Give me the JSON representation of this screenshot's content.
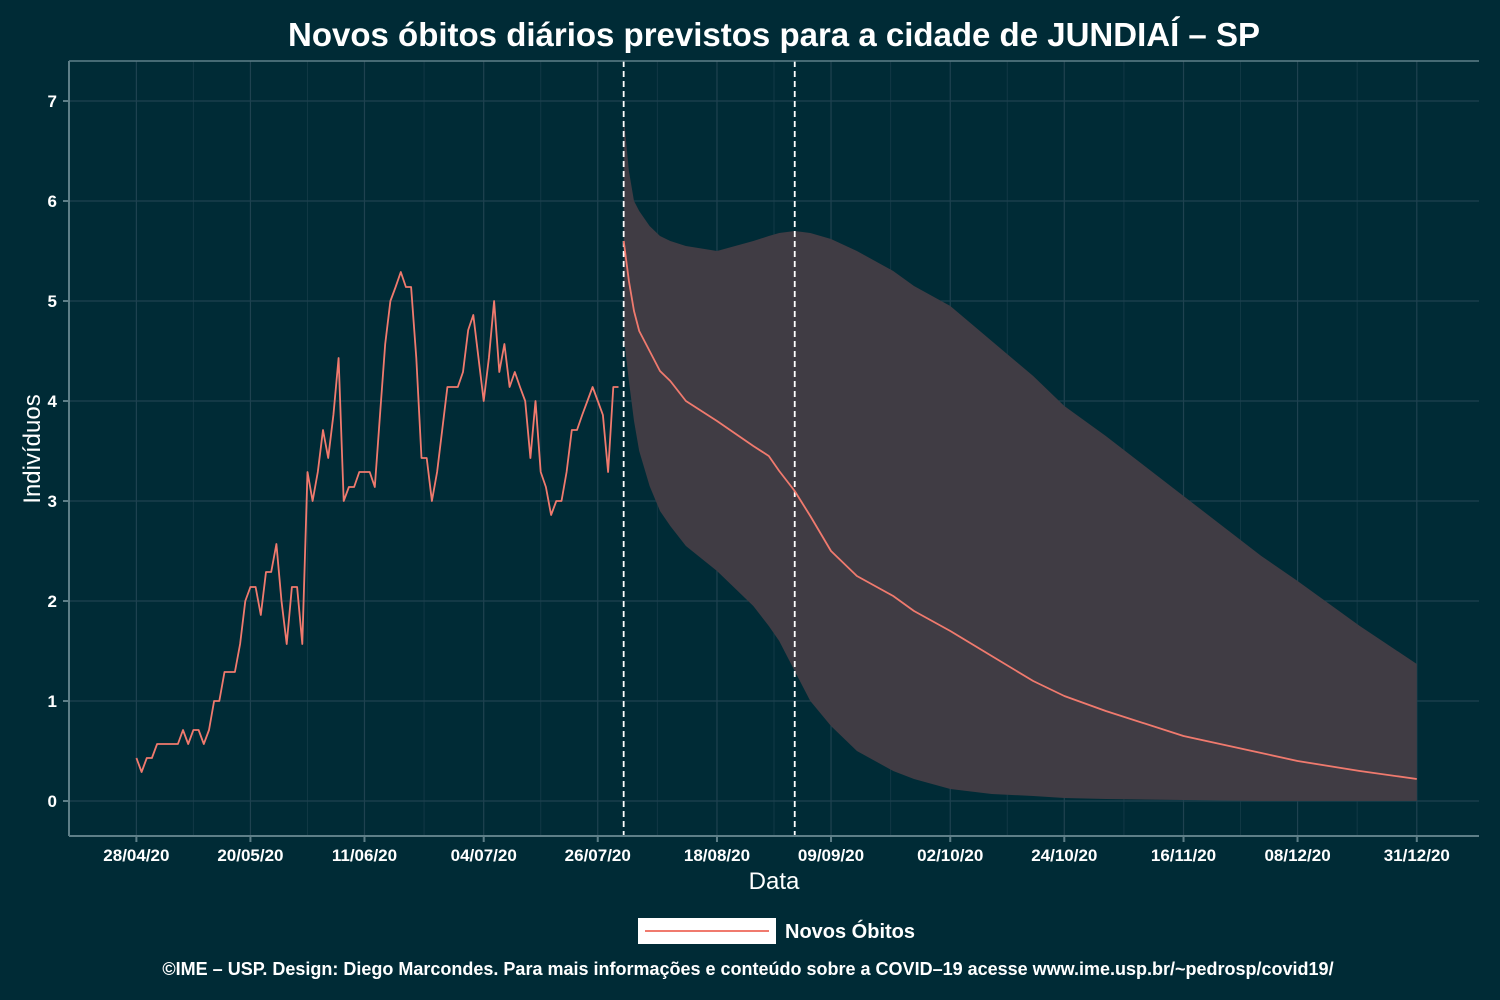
{
  "chart_data": {
    "type": "line",
    "title": "Novos óbitos diários previstos para a cidade de JUNDIAÍ – SP",
    "xlabel": "Data",
    "ylabel": "Indivíduos",
    "x_tick_labels": [
      "28/04/20",
      "20/05/20",
      "11/06/20",
      "04/07/20",
      "26/07/20",
      "18/08/20",
      "09/09/20",
      "02/10/20",
      "24/10/20",
      "16/11/20",
      "08/12/20",
      "31/12/20"
    ],
    "x_tick_dates": [
      "2020-04-28",
      "2020-05-20",
      "2020-06-11",
      "2020-07-04",
      "2020-07-26",
      "2020-08-18",
      "2020-09-09",
      "2020-10-02",
      "2020-10-24",
      "2020-11-16",
      "2020-12-08",
      "2020-12-31"
    ],
    "y_ticks": [
      0,
      1,
      2,
      3,
      4,
      5,
      6,
      7
    ],
    "xlim": [
      "2020-04-15",
      "2021-01-12"
    ],
    "ylim": [
      -0.35,
      7.4
    ],
    "grid": true,
    "legend_position": "bottom",
    "vertical_lines": [
      "2020-07-31",
      "2020-09-02"
    ],
    "colors": {
      "background": "#002b36",
      "line": "#f07a6e",
      "band": "#403c44",
      "grid": "#1f4250",
      "axis": "#5e7f88",
      "vline": "#ffffff"
    },
    "series": [
      {
        "name": "Novos Óbitos",
        "observed": {
          "x": [
            "2020-04-28",
            "2020-04-29",
            "2020-04-30",
            "2020-05-01",
            "2020-05-02",
            "2020-05-04",
            "2020-05-06",
            "2020-05-07",
            "2020-05-08",
            "2020-05-09",
            "2020-05-10",
            "2020-05-11",
            "2020-05-12",
            "2020-05-13",
            "2020-05-14",
            "2020-05-15",
            "2020-05-16",
            "2020-05-17",
            "2020-05-18",
            "2020-05-19",
            "2020-05-20",
            "2020-05-21",
            "2020-05-22",
            "2020-05-23",
            "2020-05-24",
            "2020-05-25",
            "2020-05-26",
            "2020-05-27",
            "2020-05-28",
            "2020-05-29",
            "2020-05-30",
            "2020-05-31",
            "2020-06-01",
            "2020-06-02",
            "2020-06-03",
            "2020-06-04",
            "2020-06-05",
            "2020-06-06",
            "2020-06-07",
            "2020-06-08",
            "2020-06-09",
            "2020-06-10",
            "2020-06-11",
            "2020-06-12",
            "2020-06-13",
            "2020-06-14",
            "2020-06-15",
            "2020-06-16",
            "2020-06-17",
            "2020-06-18",
            "2020-06-19",
            "2020-06-20",
            "2020-06-21",
            "2020-06-22",
            "2020-06-23",
            "2020-06-24",
            "2020-06-25",
            "2020-06-26",
            "2020-06-27",
            "2020-06-28",
            "2020-06-29",
            "2020-06-30",
            "2020-07-01",
            "2020-07-02",
            "2020-07-03",
            "2020-07-04",
            "2020-07-05",
            "2020-07-06",
            "2020-07-07",
            "2020-07-08",
            "2020-07-09",
            "2020-07-10",
            "2020-07-11",
            "2020-07-12",
            "2020-07-13",
            "2020-07-14",
            "2020-07-15",
            "2020-07-16",
            "2020-07-17",
            "2020-07-18",
            "2020-07-19",
            "2020-07-20",
            "2020-07-21",
            "2020-07-22",
            "2020-07-23",
            "2020-07-24",
            "2020-07-25",
            "2020-07-26",
            "2020-07-27",
            "2020-07-28",
            "2020-07-29",
            "2020-07-30"
          ],
          "y": [
            0.43,
            0.29,
            0.43,
            0.43,
            0.57,
            0.57,
            0.57,
            0.71,
            0.57,
            0.71,
            0.71,
            0.57,
            0.71,
            1.0,
            1.0,
            1.29,
            1.29,
            1.29,
            1.57,
            2.0,
            2.14,
            2.14,
            1.86,
            2.29,
            2.29,
            2.57,
            2.0,
            1.57,
            2.14,
            2.14,
            1.57,
            3.29,
            3.0,
            3.29,
            3.71,
            3.43,
            3.86,
            4.43,
            3.0,
            3.14,
            3.14,
            3.29,
            3.29,
            3.29,
            3.14,
            3.86,
            4.57,
            5.0,
            5.14,
            5.29,
            5.14,
            5.14,
            4.43,
            3.43,
            3.43,
            3.0,
            3.29,
            3.71,
            4.14,
            4.14,
            4.14,
            4.29,
            4.71,
            4.86,
            4.43,
            4.0,
            4.43,
            5.0,
            4.29,
            4.57,
            4.14,
            4.29,
            4.14,
            4.0,
            3.43,
            4.0,
            3.29,
            3.14,
            2.86,
            3.0,
            3.0,
            3.29,
            3.71,
            3.71,
            3.86,
            4.0,
            4.14,
            4.0,
            3.86,
            3.29,
            4.14,
            4.14
          ]
        },
        "predicted": {
          "x": [
            "2020-07-31",
            "2020-08-01",
            "2020-08-02",
            "2020-08-03",
            "2020-08-05",
            "2020-08-07",
            "2020-08-09",
            "2020-08-12",
            "2020-08-18",
            "2020-08-25",
            "2020-08-28",
            "2020-08-30",
            "2020-09-02",
            "2020-09-05",
            "2020-09-09",
            "2020-09-14",
            "2020-09-21",
            "2020-09-25",
            "2020-10-02",
            "2020-10-10",
            "2020-10-18",
            "2020-10-24",
            "2020-11-01",
            "2020-11-16",
            "2020-12-01",
            "2020-12-08",
            "2020-12-20",
            "2020-12-31"
          ],
          "y": [
            5.6,
            5.2,
            4.9,
            4.7,
            4.5,
            4.3,
            4.2,
            4.0,
            3.8,
            3.55,
            3.45,
            3.3,
            3.1,
            2.85,
            2.5,
            2.25,
            2.05,
            1.9,
            1.7,
            1.45,
            1.2,
            1.05,
            0.9,
            0.65,
            0.48,
            0.4,
            0.3,
            0.22
          ],
          "lower": [
            4.65,
            4.2,
            3.8,
            3.5,
            3.15,
            2.9,
            2.75,
            2.55,
            2.3,
            1.95,
            1.75,
            1.6,
            1.3,
            1.0,
            0.75,
            0.5,
            0.3,
            0.22,
            0.12,
            0.07,
            0.05,
            0.03,
            0.02,
            0.01,
            0.0,
            0.0,
            0.0,
            0.0
          ],
          "upper": [
            6.85,
            6.3,
            6.0,
            5.9,
            5.75,
            5.65,
            5.6,
            5.55,
            5.5,
            5.6,
            5.65,
            5.68,
            5.7,
            5.68,
            5.62,
            5.5,
            5.3,
            5.15,
            4.95,
            4.6,
            4.25,
            3.95,
            3.65,
            3.05,
            2.45,
            2.2,
            1.75,
            1.37
          ]
        }
      }
    ]
  },
  "footer": "©IME – USP. Design: Diego Marcondes. Para mais informações e conteúdo sobre a COVID–19 acesse www.ime.usp.br/~pedrosp/covid19/"
}
